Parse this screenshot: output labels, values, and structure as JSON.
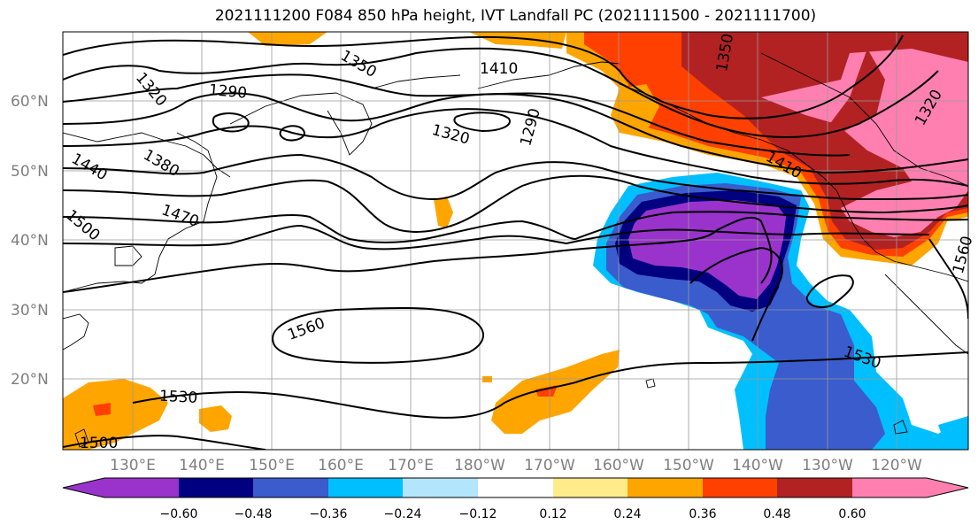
{
  "title": "2021111200 F084 850 hPa height, IVT Landfall PC (2021111500 - 2021111700)",
  "lat_ticks": [
    "60°N",
    "50°N",
    "40°N",
    "30°N",
    "20°N"
  ],
  "lon_ticks": [
    "130°E",
    "140°E",
    "150°E",
    "160°E",
    "170°E",
    "180°W",
    "170°W",
    "160°W",
    "150°W",
    "140°W",
    "130°W",
    "120°W"
  ],
  "colorbar": {
    "tick_labels": [
      "−0.60",
      "−0.48",
      "−0.36",
      "−0.24",
      "−0.12",
      "0.12",
      "0.24",
      "0.36",
      "0.48",
      "0.60"
    ],
    "colors": [
      "#9933cc",
      "#000080",
      "#3a5ccc",
      "#00bfff",
      "#b3e5fc",
      "#ffffff",
      "#ffeb8a",
      "#ffa500",
      "#ff4000",
      "#b22222",
      "#ff80b0"
    ]
  },
  "contour_labels": [
    "1320",
    "1290",
    "1350",
    "1410",
    "1350",
    "1320",
    "1290",
    "1380",
    "1440",
    "1470",
    "1500",
    "1410",
    "1320",
    "1560",
    "1530",
    "1560",
    "1530",
    "1500"
  ]
}
